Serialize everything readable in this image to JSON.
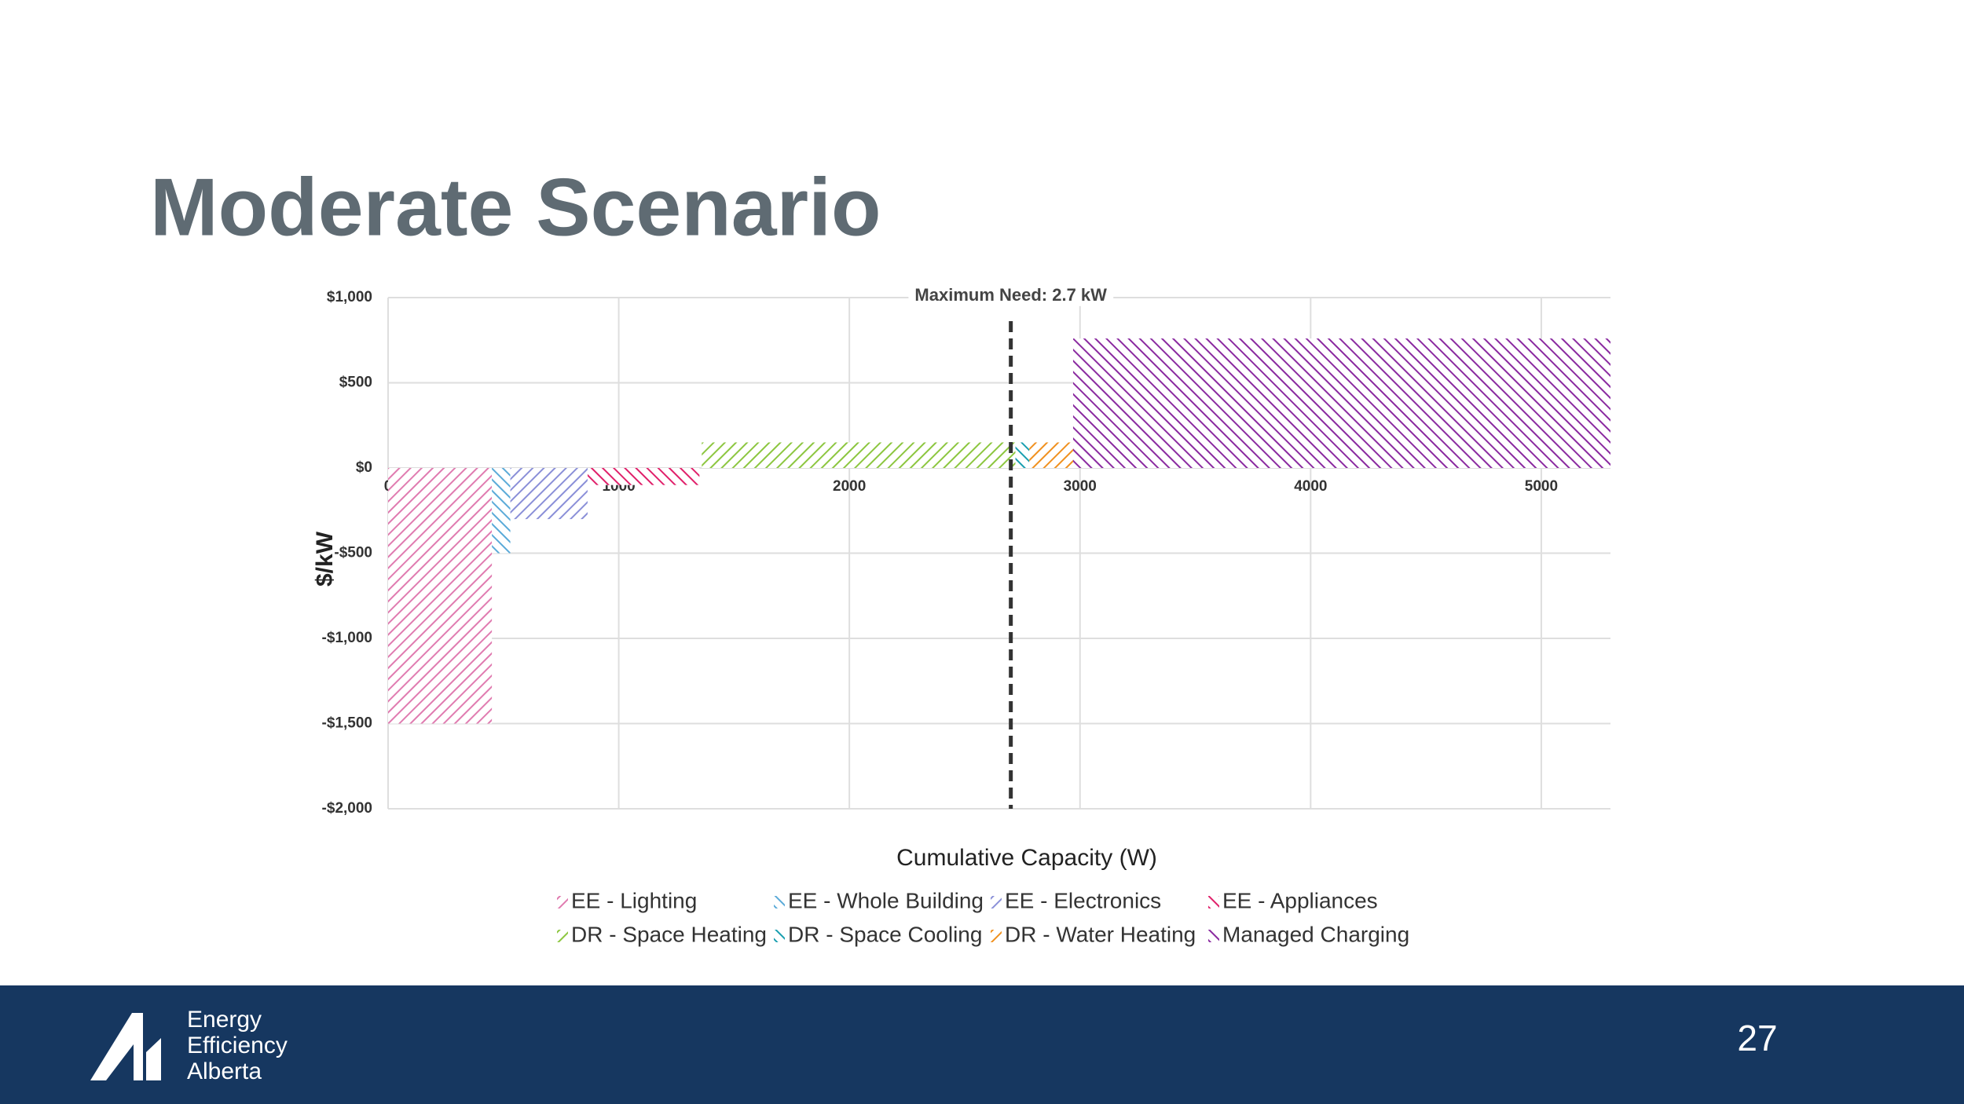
{
  "header": {
    "title": "Moderate Scenario"
  },
  "chart_data": {
    "type": "bar",
    "ylabel": "$/kW",
    "xlabel": "Cumulative Capacity (W)",
    "xlim": [
      0,
      5300
    ],
    "xticks": [
      0,
      1000,
      2000,
      3000,
      4000,
      5000
    ],
    "ylim": [
      -2000,
      1000
    ],
    "yticks": [
      {
        "value": 1000,
        "label": "$1,000"
      },
      {
        "value": 500,
        "label": "$500"
      },
      {
        "value": 0,
        "label": "$0"
      },
      {
        "value": -500,
        "label": "-$500"
      },
      {
        "value": -1000,
        "label": "-$1,000"
      },
      {
        "value": -1500,
        "label": "-$1,500"
      },
      {
        "value": -2000,
        "label": "-$2,000"
      }
    ],
    "grid": true,
    "annotation": {
      "value": 2700,
      "label": "Maximum Need: 2.7 kW"
    },
    "series": [
      {
        "name": "EE - Lighting",
        "color": "#e07bb0",
        "xrange": [
          0,
          450
        ],
        "values": [
          -1500
        ]
      },
      {
        "name": "EE - Whole Building",
        "color": "#5aaad8",
        "xrange": [
          450,
          530
        ],
        "values": [
          -500
        ]
      },
      {
        "name": "EE - Electronics",
        "color": "#8a8fd8",
        "xrange": [
          530,
          865
        ],
        "values": [
          -300
        ]
      },
      {
        "name": "EE - Appliances",
        "color": "#e0206a",
        "xrange": [
          865,
          1350
        ],
        "values": [
          -100
        ]
      },
      {
        "name": "DR - Space Heating",
        "color": "#8cc63f",
        "xrange": [
          1360,
          2720
        ],
        "values": [
          150
        ]
      },
      {
        "name": "DR - Space Cooling",
        "color": "#1a9fb0",
        "xrange": [
          2720,
          2780
        ],
        "values": [
          150
        ]
      },
      {
        "name": "DR - Water Heating",
        "color": "#f0901e",
        "xrange": [
          2780,
          2970
        ],
        "values": [
          150
        ]
      },
      {
        "name": "Managed Charging",
        "color": "#8a2aa0",
        "xrange": [
          2970,
          5300
        ],
        "values": [
          760
        ]
      }
    ]
  },
  "footer": {
    "logo_lines": [
      "Energy",
      "Efficiency",
      "Alberta"
    ],
    "page_number": "27"
  }
}
